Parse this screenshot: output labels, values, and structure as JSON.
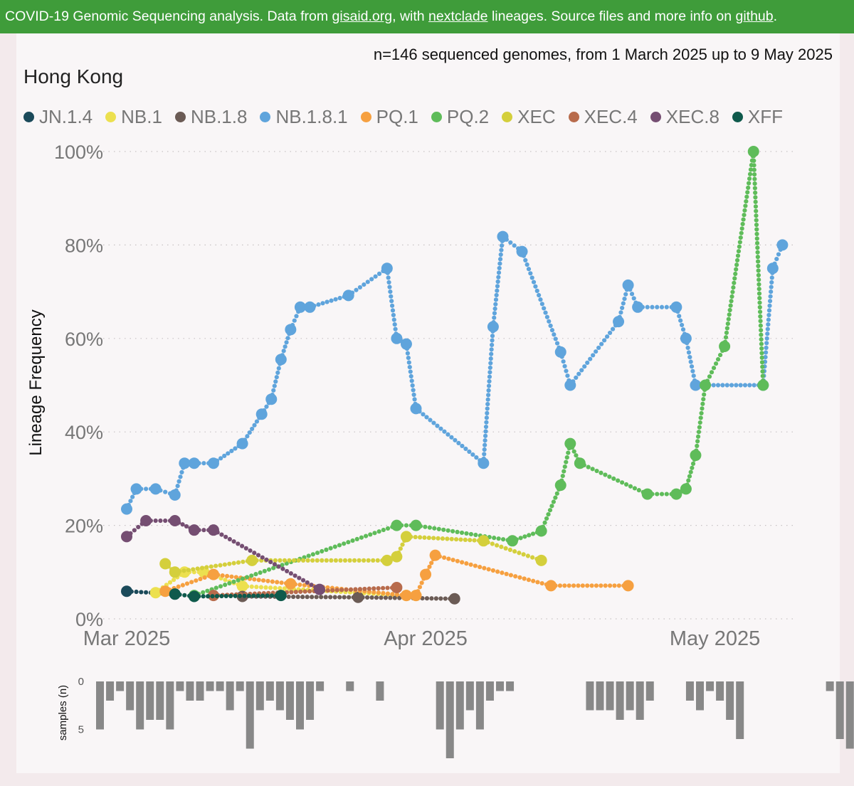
{
  "banner": {
    "prefix": "COVID-19 Genomic Sequencing analysis. Data from ",
    "link1": "gisaid.org",
    "middle1": ", with ",
    "link2": "nextclade",
    "middle2": " lineages. Source files and more info on ",
    "link3": "github",
    "suffix": "."
  },
  "subtitle": "n=146 sequenced genomes, from 1 March 2025 up to 9 May 2025",
  "region": "Hong Kong",
  "chart_data": {
    "type": "line",
    "ylabel": "Lineage Frequency",
    "ylim": [
      0,
      100
    ],
    "yticks": [
      "0%",
      "20%",
      "40%",
      "60%",
      "80%",
      "100%"
    ],
    "xlim": [
      "2025-03-01",
      "2025-05-10"
    ],
    "xticks": [
      {
        "date": "2025-03-01",
        "label": "Mar 2025"
      },
      {
        "date": "2025-04-01",
        "label": "Apr 2025"
      },
      {
        "date": "2025-05-01",
        "label": "May 2025"
      }
    ],
    "grid": "horizontal-dotted",
    "legend_position": "top",
    "series": [
      {
        "name": "JN.1.4",
        "color": "#1b4a5a",
        "points": [
          [
            "2025-03-01",
            5.9
          ],
          [
            "2025-03-06",
            5.3
          ]
        ]
      },
      {
        "name": "NB.1",
        "color": "#ece04f",
        "points": [
          [
            "2025-03-04",
            5.6
          ],
          [
            "2025-03-07",
            10
          ],
          [
            "2025-03-09",
            10
          ],
          [
            "2025-03-13",
            7
          ],
          [
            "2025-03-30",
            5
          ],
          [
            "2025-03-31",
            5
          ]
        ]
      },
      {
        "name": "NB.1.8",
        "color": "#6b5b55",
        "points": [
          [
            "2025-03-13",
            4.8
          ],
          [
            "2025-03-25",
            4.6
          ],
          [
            "2025-04-04",
            4.3
          ]
        ]
      },
      {
        "name": "NB.1.8.1",
        "color": "#5fa4dc",
        "points": [
          [
            "2025-03-01",
            23.5
          ],
          [
            "2025-03-02",
            27.8
          ],
          [
            "2025-03-04",
            27.8
          ],
          [
            "2025-03-06",
            26.5
          ],
          [
            "2025-03-07",
            33.3
          ],
          [
            "2025-03-08",
            33.3
          ],
          [
            "2025-03-10",
            33.3
          ],
          [
            "2025-03-13",
            37.5
          ],
          [
            "2025-03-15",
            43.8
          ],
          [
            "2025-03-16",
            47
          ],
          [
            "2025-03-17",
            55.5
          ],
          [
            "2025-03-18",
            61.9
          ],
          [
            "2025-03-19",
            66.7
          ],
          [
            "2025-03-20",
            66.7
          ],
          [
            "2025-03-24",
            69.2
          ],
          [
            "2025-03-28",
            75
          ],
          [
            "2025-03-29",
            60
          ],
          [
            "2025-03-30",
            58.8
          ],
          [
            "2025-03-31",
            45
          ],
          [
            "2025-04-07",
            33.3
          ],
          [
            "2025-04-08",
            62.5
          ],
          [
            "2025-04-09",
            81.8
          ],
          [
            "2025-04-11",
            78.6
          ],
          [
            "2025-04-15",
            57.1
          ],
          [
            "2025-04-16",
            50
          ],
          [
            "2025-04-21",
            63.6
          ],
          [
            "2025-04-22",
            71.4
          ],
          [
            "2025-04-23",
            66.7
          ],
          [
            "2025-04-27",
            66.7
          ],
          [
            "2025-04-28",
            60
          ],
          [
            "2025-04-29",
            50
          ],
          [
            "2025-05-06",
            50
          ],
          [
            "2025-05-07",
            75
          ],
          [
            "2025-05-08",
            80
          ]
        ]
      },
      {
        "name": "PQ.1",
        "color": "#f6a040",
        "points": [
          [
            "2025-03-05",
            5.9
          ],
          [
            "2025-03-10",
            9.5
          ],
          [
            "2025-03-18",
            7.5
          ],
          [
            "2025-03-30",
            5
          ],
          [
            "2025-03-31",
            5
          ],
          [
            "2025-04-01",
            9.5
          ],
          [
            "2025-04-02",
            13.6
          ],
          [
            "2025-04-14",
            7.1
          ],
          [
            "2025-04-22",
            7.1
          ]
        ]
      },
      {
        "name": "PQ.2",
        "color": "#5fbc5a",
        "points": [
          [
            "2025-03-08",
            5
          ],
          [
            "2025-03-29",
            20
          ],
          [
            "2025-03-31",
            20
          ],
          [
            "2025-04-10",
            16.7
          ],
          [
            "2025-04-13",
            18.8
          ],
          [
            "2025-04-15",
            28.6
          ],
          [
            "2025-04-16",
            37.5
          ],
          [
            "2025-04-17",
            33.3
          ],
          [
            "2025-04-24",
            26.7
          ],
          [
            "2025-04-27",
            26.7
          ],
          [
            "2025-04-28",
            27.8
          ],
          [
            "2025-04-29",
            35
          ],
          [
            "2025-04-30",
            50
          ],
          [
            "2025-05-02",
            58.3
          ],
          [
            "2025-05-05",
            100
          ],
          [
            "2025-05-06",
            50
          ]
        ]
      },
      {
        "name": "XEC",
        "color": "#d4cf3c",
        "points": [
          [
            "2025-03-05",
            11.8
          ],
          [
            "2025-03-06",
            10
          ],
          [
            "2025-03-14",
            12.5
          ],
          [
            "2025-03-28",
            12.5
          ],
          [
            "2025-03-29",
            13.3
          ],
          [
            "2025-03-30",
            17.6
          ],
          [
            "2025-04-07",
            16.7
          ],
          [
            "2025-04-13",
            12.5
          ]
        ]
      },
      {
        "name": "XEC.4",
        "color": "#b86b4c",
        "points": [
          [
            "2025-03-10",
            5
          ],
          [
            "2025-03-29",
            6.7
          ]
        ]
      },
      {
        "name": "XEC.8",
        "color": "#754e72",
        "points": [
          [
            "2025-03-01",
            17.6
          ],
          [
            "2025-03-03",
            21
          ],
          [
            "2025-03-06",
            21
          ],
          [
            "2025-03-08",
            19
          ],
          [
            "2025-03-10",
            19
          ],
          [
            "2025-03-21",
            6.3
          ]
        ]
      },
      {
        "name": "XFF",
        "color": "#0f5a4c",
        "points": [
          [
            "2025-03-06",
            5.3
          ],
          [
            "2025-03-08",
            4.8
          ],
          [
            "2025-03-17",
            5
          ]
        ]
      }
    ],
    "samples": {
      "ylabel": "samples (n)",
      "yticks": [
        0,
        5
      ],
      "ylim": [
        0,
        8
      ],
      "counts": [
        5,
        2,
        1,
        3,
        5,
        4,
        4,
        5,
        1,
        2,
        2,
        1,
        1,
        3,
        1,
        7,
        3,
        2,
        3,
        4,
        5,
        4,
        1,
        0,
        0,
        1,
        0,
        0,
        2,
        0,
        0,
        0,
        0,
        0,
        5,
        8,
        5,
        3,
        5,
        2,
        1,
        1,
        0,
        0,
        0,
        0,
        0,
        0,
        0,
        3,
        3,
        3,
        4,
        3,
        4,
        2,
        0,
        0,
        0,
        2,
        3,
        1,
        2,
        4,
        6,
        0,
        0,
        0,
        0,
        0,
        0,
        0,
        0,
        1,
        6,
        7,
        0,
        0,
        0,
        0,
        0,
        0,
        0,
        0,
        1,
        2,
        3,
        3,
        2,
        4,
        0,
        0,
        1,
        0,
        0,
        0,
        0,
        0,
        0,
        0,
        0,
        0,
        0,
        0,
        0,
        1,
        4,
        3,
        2
      ]
    }
  }
}
